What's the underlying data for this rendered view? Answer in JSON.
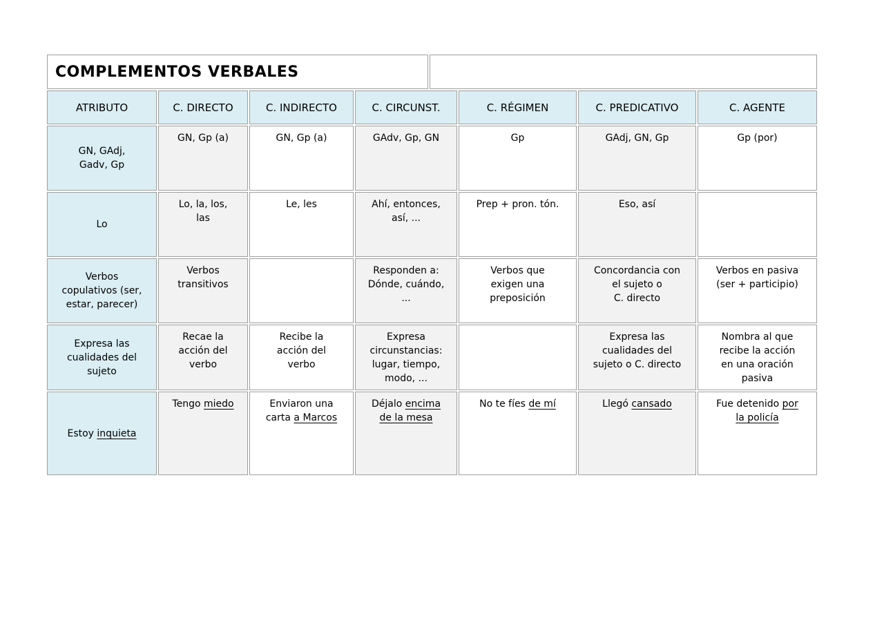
{
  "title_row": {
    "title": "COMPLEMENTOS VERBALES"
  },
  "colors": {
    "header_bg": "#daeef3",
    "first_column_bg": "#daeef3",
    "alt_column_bg": "#f2f2f2",
    "plain_column_bg": "#ffffff",
    "border": "#9e9e9e",
    "text": "#000000"
  },
  "table": {
    "headers": [
      "ATRIBUTO",
      "C. DIRECTO",
      "C. INDIRECTO",
      "C. CIRCUNST.",
      "C. RÉGIMEN",
      "C. PREDICATIVO",
      "C. AGENTE"
    ],
    "rows": [
      {
        "name": "formas",
        "cells": [
          [
            {
              "t": "GN, GAdj,\nGadv, Gp"
            }
          ],
          [
            {
              "t": "GN, Gp (a)"
            }
          ],
          [
            {
              "t": "GN, Gp (a)"
            }
          ],
          [
            {
              "t": "GAdv, Gp, GN"
            }
          ],
          [
            {
              "t": "Gp"
            }
          ],
          [
            {
              "t": "GAdj, GN, Gp"
            }
          ],
          [
            {
              "t": "Gp (por)"
            }
          ]
        ]
      },
      {
        "name": "sustitucion",
        "cells": [
          [
            {
              "t": "Lo"
            }
          ],
          [
            {
              "t": "Lo, la, los,\nlas"
            }
          ],
          [
            {
              "t": "Le, les"
            }
          ],
          [
            {
              "t": "Ahí, entonces,\nasí, ..."
            }
          ],
          [
            {
              "t": "Prep + pron. tón."
            }
          ],
          [
            {
              "t": "Eso, así"
            }
          ],
          []
        ]
      },
      {
        "name": "verbos",
        "cells": [
          [
            {
              "t": "Verbos\ncopulativos (ser,\nestar, parecer)"
            }
          ],
          [
            {
              "t": "Verbos\ntransitivos"
            }
          ],
          [],
          [
            {
              "t": "Responden a:\nDónde, cuándo,\n..."
            }
          ],
          [
            {
              "t": "Verbos que\nexigen una\npreposición"
            }
          ],
          [
            {
              "t": "Concordancia con\nel sujeto o\nC. directo"
            }
          ],
          [
            {
              "t": "Verbos en pasiva\n(ser + participio)"
            }
          ]
        ]
      },
      {
        "name": "funcion",
        "cells": [
          [
            {
              "t": "Expresa las\ncualidades del\nsujeto"
            }
          ],
          [
            {
              "t": "Recae la\nacción del\nverbo"
            }
          ],
          [
            {
              "t": "Recibe la\nacción del\nverbo"
            }
          ],
          [
            {
              "t": "Expresa\ncircunstancias:\nlugar, tiempo,\nmodo, ..."
            }
          ],
          [],
          [
            {
              "t": "Expresa las\ncualidades del\nsujeto o C. directo"
            }
          ],
          [
            {
              "t": "Nombra al que\nrecibe la acción\nen una oración\npasiva"
            }
          ]
        ]
      },
      {
        "name": "ejemplos",
        "cells": [
          [
            {
              "t": "Estoy "
            },
            {
              "t": "inquieta",
              "u": true
            }
          ],
          [
            {
              "t": "Tengo "
            },
            {
              "t": "miedo",
              "u": true
            }
          ],
          [
            {
              "t": "Enviaron una\ncarta "
            },
            {
              "t": "a Marcos",
              "u": true
            }
          ],
          [
            {
              "t": "Déjalo "
            },
            {
              "t": "encima",
              "u": true
            },
            {
              "t": "\n"
            },
            {
              "t": "de la mesa",
              "u": true
            }
          ],
          [
            {
              "t": "No te fíes "
            },
            {
              "t": "de mí",
              "u": true
            }
          ],
          [
            {
              "t": "Llegó "
            },
            {
              "t": "cansado",
              "u": true
            }
          ],
          [
            {
              "t": "Fue detenido "
            },
            {
              "t": "por\nla policía",
              "u": true
            }
          ]
        ]
      }
    ]
  }
}
